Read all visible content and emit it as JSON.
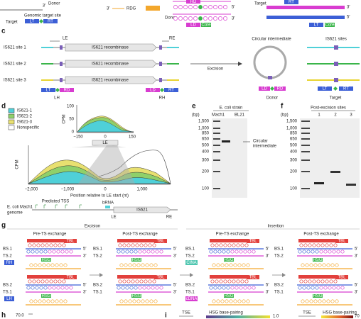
{
  "panel_b": {
    "donor": "Donor",
    "rdg": "RDG",
    "genomic_target_site": "Genomic target site",
    "target": "Target",
    "lt": "LT",
    "rt": "RT",
    "rd": "RD",
    "ld": "LD",
    "core": "Core",
    "prime3": "3′",
    "prime5": "5′"
  },
  "panel_c": {
    "label": "c",
    "le": "LE",
    "re": "RE",
    "sites": [
      "IS621 site 1",
      "IS621 site 2",
      "IS621 site 3"
    ],
    "recombinase": "IS621 recombinase",
    "excision": "Excision",
    "circular": "Circular intermediate",
    "is621_sites": "IS621 sites",
    "lt": "LT",
    "rd": "RD",
    "lh": "LH",
    "ld": "LD",
    "rt": "RT",
    "rh": "RH",
    "donor": "Donor",
    "target": "Target"
  },
  "panel_d": {
    "label": "d",
    "legend": [
      "IS621-1",
      "IS621-2",
      "IS621-3",
      "Nonspecific"
    ],
    "inset": {
      "y_label": "CPM",
      "yticks": [
        "100",
        "50",
        "0"
      ],
      "xticks": [
        "−150",
        "0",
        "150"
      ],
      "le": "LE"
    },
    "y_label": "CPM",
    "xticks": [
      "−2,000",
      "−1,000",
      "0",
      "1,000"
    ],
    "x_label": "Position relative to LE start (nt)",
    "genome": [
      "E. coli Mach1",
      "genome"
    ],
    "tss": "Predicted TSS",
    "brna": "bRNA",
    "is621": "IS621",
    "le": "LE",
    "re": "RE"
  },
  "panel_e": {
    "label": "e",
    "strain": "E. coli strain",
    "bp": "(bp)",
    "lanes": [
      "Mach1",
      "BL21"
    ],
    "ladder": [
      "1,500",
      "1,000",
      "850",
      "650",
      "500",
      "400",
      "300",
      "200",
      "100"
    ],
    "annotation": [
      "Circular",
      "intermediate"
    ]
  },
  "panel_f": {
    "label": "f",
    "title": "Post-excision sites",
    "bp": "(bp)",
    "lanes": [
      "1",
      "2",
      "3"
    ],
    "ladder": [
      "1,500",
      "1,000",
      "850",
      "650",
      "500",
      "400",
      "300",
      "200",
      "100"
    ]
  },
  "panel_g": {
    "label": "g",
    "excision": "Excision",
    "insertion": "Insertion",
    "stages": [
      "Pre-TS exchange",
      "Post-TS exchange",
      "Pre-TS exchange",
      "Post-TS exchange"
    ],
    "strands": [
      "BS.1",
      "TS.2",
      "BS.2",
      "TS.1"
    ],
    "tbl": "TBL",
    "hsg": "HSG",
    "rh": "RH",
    "lh": "LH",
    "cina": "CINA",
    "cdna": "cDNA",
    "prime5": "5′",
    "prime3": "3′"
  },
  "panel_h": {
    "label": "h",
    "ytick": "70.0"
  },
  "panel_i": {
    "label": "i",
    "tse": "TSE",
    "hsg_bp": "HSG base-pairing",
    "scale_left": "1.0",
    "scale_right": "70"
  }
}
